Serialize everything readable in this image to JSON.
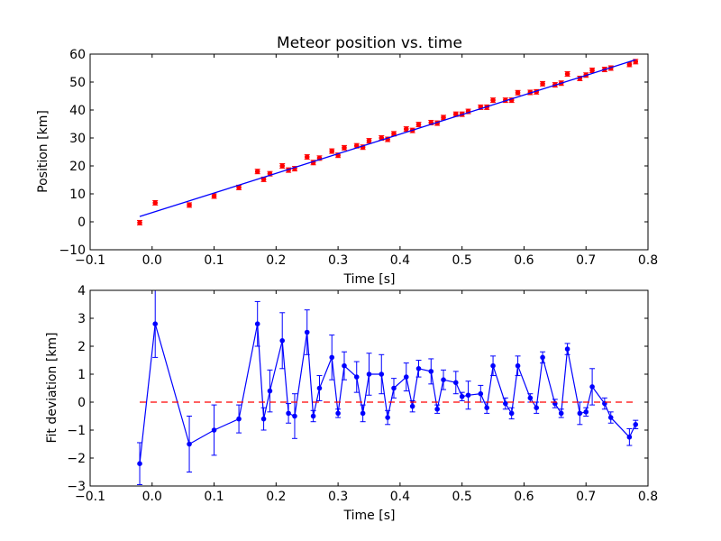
{
  "figure": {
    "background": "#ffffff"
  },
  "chart_data": [
    {
      "type": "scatter",
      "title": "Meteor position vs. time",
      "xlabel": "Time [s]",
      "ylabel": "Position [km]",
      "xlim": [
        -0.1,
        0.8
      ],
      "ylim": [
        -10,
        60
      ],
      "xticks": [
        "−0.1",
        "0.0",
        "0.1",
        "0.2",
        "0.3",
        "0.4",
        "0.5",
        "0.6",
        "0.7",
        "0.8"
      ],
      "yticks": [
        "−10",
        "0",
        "10",
        "20",
        "30",
        "40",
        "50",
        "60"
      ],
      "grid": false,
      "series": [
        {
          "style": "points-with-errorbars",
          "color": "#ff0000",
          "x": [
            -0.02,
            0.005,
            0.06,
            0.1,
            0.14,
            0.17,
            0.18,
            0.19,
            0.21,
            0.22,
            0.23,
            0.25,
            0.26,
            0.27,
            0.29,
            0.3,
            0.31,
            0.33,
            0.34,
            0.35,
            0.37,
            0.38,
            0.39,
            0.41,
            0.42,
            0.43,
            0.45,
            0.46,
            0.47,
            0.49,
            0.5,
            0.51,
            0.53,
            0.54,
            0.55,
            0.57,
            0.58,
            0.59,
            0.61,
            0.62,
            0.63,
            0.65,
            0.66,
            0.67,
            0.69,
            0.7,
            0.71,
            0.73,
            0.74,
            0.77,
            0.78
          ],
          "y": [
            -0.3,
            6.8,
            6.0,
            9.2,
            12.3,
            18.0,
            15.2,
            17.2,
            20.0,
            18.5,
            19.0,
            23.2,
            21.2,
            22.8,
            25.3,
            23.8,
            26.5,
            27.2,
            26.7,
            29.0,
            30.0,
            29.5,
            31.5,
            33.2,
            32.7,
            34.8,
            35.5,
            35.3,
            37.3,
            38.5,
            38.5,
            39.5,
            41.0,
            41.0,
            43.5,
            43.5,
            43.5,
            46.2,
            46.3,
            46.5,
            49.4,
            49.0,
            49.6,
            52.9,
            51.3,
            52.5,
            54.2,
            54.5,
            55.0,
            56.3,
            57.3
          ],
          "error": 0.8
        },
        {
          "style": "line",
          "color": "#0000ff",
          "x": [
            -0.02,
            0.78
          ],
          "y": [
            1.9,
            58.0
          ]
        }
      ]
    },
    {
      "type": "line",
      "title": "",
      "xlabel": "Time [s]",
      "ylabel": "Fit deviation [km]",
      "xlim": [
        -0.1,
        0.8
      ],
      "ylim": [
        -3,
        4
      ],
      "xticks": [
        "−0.1",
        "0.0",
        "0.1",
        "0.2",
        "0.3",
        "0.4",
        "0.5",
        "0.6",
        "0.7",
        "0.8"
      ],
      "yticks": [
        "−3",
        "−2",
        "−1",
        "0",
        "1",
        "2",
        "3",
        "4"
      ],
      "grid": false,
      "series": [
        {
          "style": "line-with-markers-and-errorbars",
          "color": "#0000ff",
          "x": [
            -0.02,
            0.005,
            0.06,
            0.1,
            0.14,
            0.17,
            0.18,
            0.19,
            0.21,
            0.22,
            0.23,
            0.25,
            0.26,
            0.27,
            0.29,
            0.3,
            0.31,
            0.33,
            0.34,
            0.35,
            0.37,
            0.38,
            0.39,
            0.41,
            0.42,
            0.43,
            0.45,
            0.46,
            0.47,
            0.49,
            0.5,
            0.51,
            0.53,
            0.54,
            0.55,
            0.57,
            0.58,
            0.59,
            0.61,
            0.62,
            0.63,
            0.65,
            0.66,
            0.67,
            0.69,
            0.7,
            0.71,
            0.73,
            0.74,
            0.77,
            0.78
          ],
          "y": [
            -2.2,
            2.8,
            -1.5,
            -1.0,
            -0.6,
            2.8,
            -0.6,
            0.4,
            2.2,
            -0.4,
            -0.5,
            2.5,
            -0.5,
            0.5,
            1.6,
            -0.4,
            1.3,
            0.9,
            -0.4,
            1.0,
            1.0,
            -0.55,
            0.5,
            0.9,
            -0.15,
            1.2,
            1.1,
            -0.25,
            0.8,
            0.7,
            0.2,
            0.25,
            0.3,
            -0.2,
            1.3,
            -0.05,
            -0.4,
            1.3,
            0.15,
            -0.2,
            1.6,
            -0.05,
            -0.4,
            1.9,
            -0.4,
            -0.35,
            0.55,
            -0.05,
            -0.55,
            -1.25,
            -0.8
          ],
          "error": [
            0.75,
            1.2,
            1.0,
            0.9,
            0.5,
            0.8,
            0.4,
            0.75,
            1.0,
            0.35,
            0.8,
            0.8,
            0.2,
            0.45,
            0.8,
            0.15,
            0.5,
            0.55,
            0.3,
            0.75,
            0.7,
            0.25,
            0.35,
            0.5,
            0.2,
            0.3,
            0.45,
            0.15,
            0.35,
            0.4,
            0.15,
            0.5,
            0.3,
            0.2,
            0.35,
            0.2,
            0.2,
            0.35,
            0.15,
            0.2,
            0.2,
            0.15,
            0.15,
            0.2,
            0.4,
            0.15,
            0.65,
            0.2,
            0.2,
            0.3,
            0.15
          ]
        },
        {
          "style": "dashed-reference",
          "color": "#ff0000",
          "x": [
            -0.02,
            0.78
          ],
          "y": [
            0,
            0
          ]
        }
      ]
    }
  ]
}
